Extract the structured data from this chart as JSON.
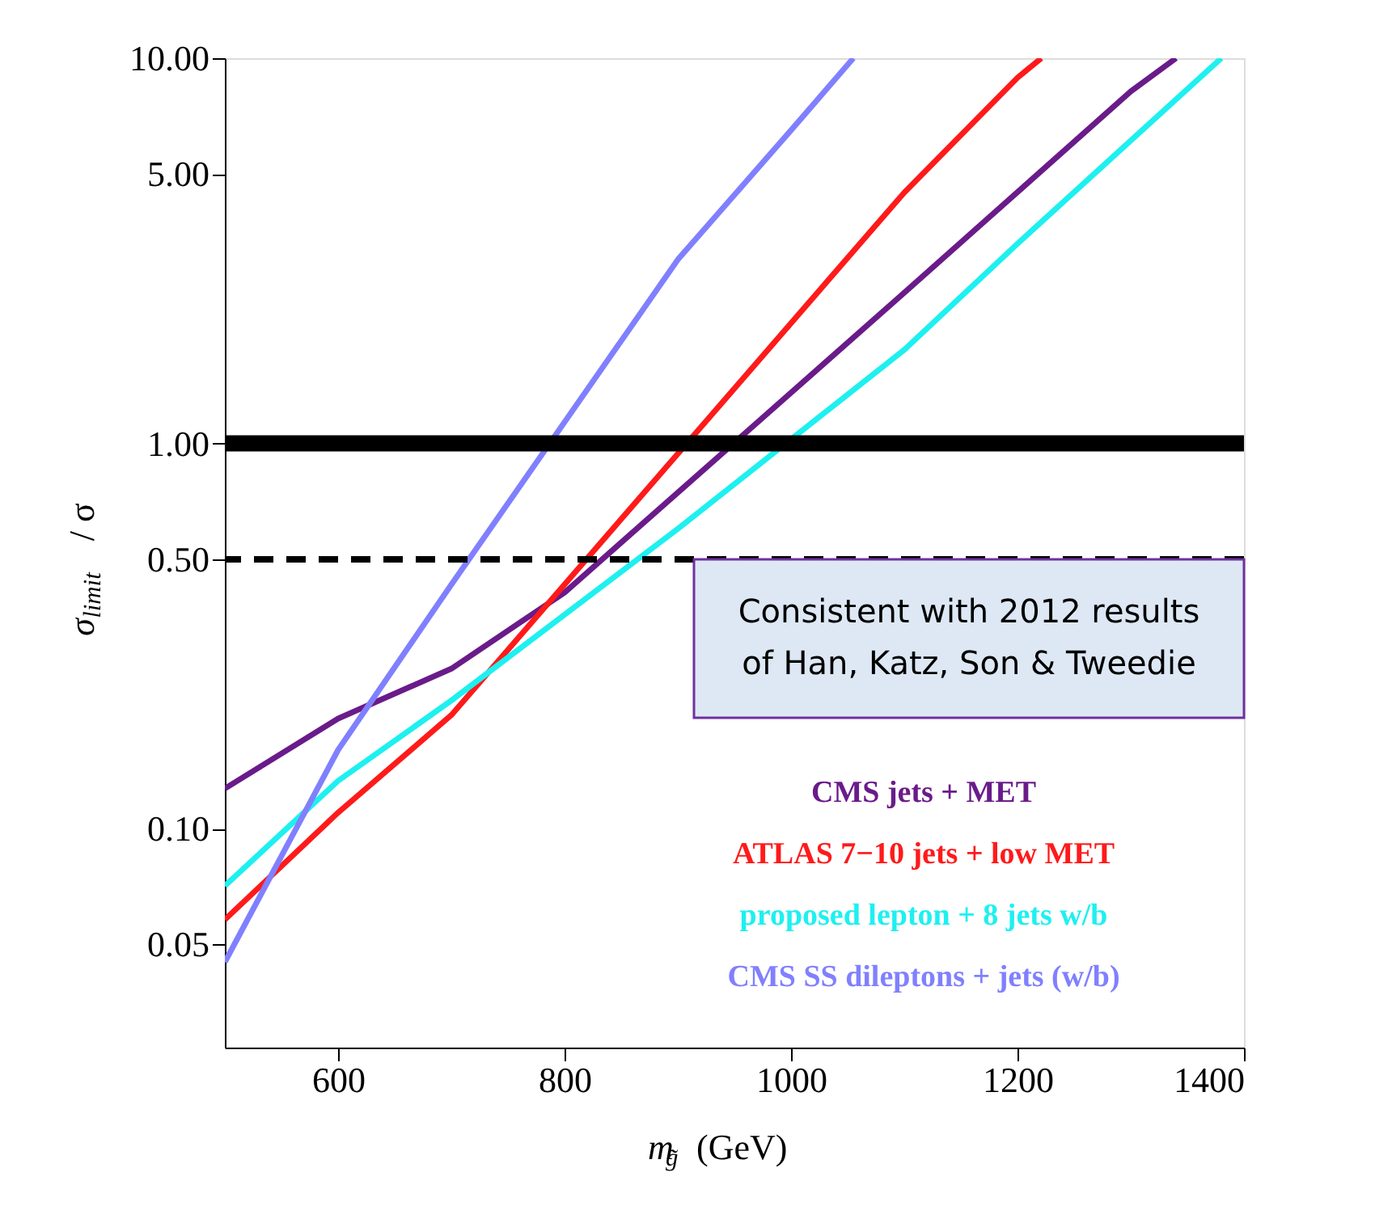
{
  "chart_data": {
    "type": "line",
    "xlabel": "m$_{g̃}$  (GeV)",
    "ylabel": "σ$_{limit}$ / σ",
    "log": "y",
    "xlim": [
      500,
      1400
    ],
    "xticks": [
      600,
      800,
      {
        "value": 1000,
        "label": "1000"
      },
      {
        "value": 1200,
        "label": "1200"
      },
      {
        "value": 1400,
        "label": "1400"
      }
    ],
    "ylim": [
      0.027,
      10
    ],
    "yticks": [
      {
        "value": 0.05,
        "label": "0.05"
      },
      {
        "value": 0.1,
        "label": "0.10"
      },
      {
        "value": 0.5,
        "label": "0.50"
      },
      {
        "value": 1,
        "label": "1.00"
      },
      {
        "value": 5,
        "label": "5.00"
      },
      {
        "value": 10,
        "label": "10.00"
      }
    ],
    "grid": false,
    "legend": "bottom right",
    "line_style": "solid",
    "marker": "none",
    "series": [
      {
        "name": "CMS jets + MET",
        "color": "#6a1b8a",
        "x": [
          500,
          600,
          700,
          800,
          1100,
          1300,
          1340
        ],
        "values": [
          0.127,
          0.193,
          0.26,
          0.41,
          2.46,
          8.2,
          10
        ]
      },
      {
        "name": "ATLAS 7−10 jets + low MET",
        "color": "#ff1a1a",
        "x": [
          500,
          600,
          700,
          1100,
          1200,
          1221
        ],
        "values": [
          0.058,
          0.11,
          0.197,
          4.48,
          8.9,
          10
        ]
      },
      {
        "name": "proposed lepton + 8 jets w/b",
        "color": "#1ef0f0",
        "x": [
          500,
          600,
          700,
          900,
          1100,
          1200,
          1380
        ],
        "values": [
          0.071,
          0.133,
          0.215,
          0.6,
          1.75,
          3.3,
          10
        ]
      },
      {
        "name": "CMS SS dileptons + jets (w/b)",
        "color": "#8080ff",
        "x": [
          500,
          600,
          700,
          900,
          1000,
          1055
        ],
        "values": [
          0.045,
          0.16,
          0.43,
          3.0,
          6.5,
          10
        ]
      }
    ],
    "ref_lines": [
      {
        "axis": "y",
        "value": 1,
        "color": "#000000",
        "line_style": "solid"
      },
      {
        "axis": "y",
        "value": 0.5,
        "color": "#000000",
        "line_style": "dashed"
      }
    ],
    "annotations": [
      "Consistent with 2012 results\nof Han, Katz, Son & Tweedie"
    ]
  }
}
